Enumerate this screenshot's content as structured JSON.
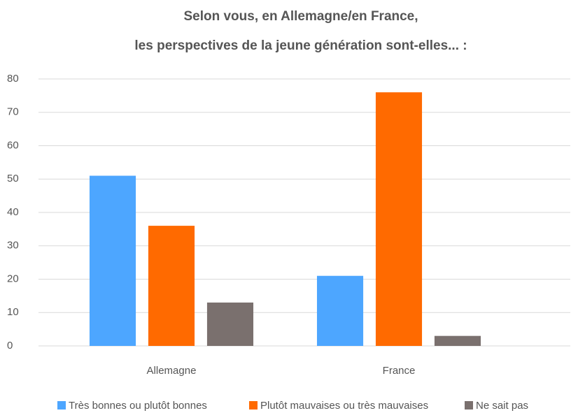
{
  "chart_data": {
    "type": "bar",
    "title": [
      "Selon vous, en Allemagne/en France,",
      "les perspectives de la jeune génération sont-elles... :"
    ],
    "categories": [
      "Allemagne",
      "France"
    ],
    "series": [
      {
        "name": "Très bonnes ou plutôt bonnes",
        "color": "#4da6ff",
        "values": [
          51,
          21
        ]
      },
      {
        "name": "Plutôt mauvaises ou très mauvaises",
        "color": "#ff6a00",
        "values": [
          36,
          76
        ]
      },
      {
        "name": "Ne sait pas",
        "color": "#7a706e",
        "values": [
          13,
          3
        ]
      }
    ],
    "ylim": [
      0,
      80
    ],
    "yticks": [
      0,
      10,
      20,
      30,
      40,
      50,
      60,
      70,
      80
    ],
    "grid": true,
    "legend": "bottom"
  }
}
